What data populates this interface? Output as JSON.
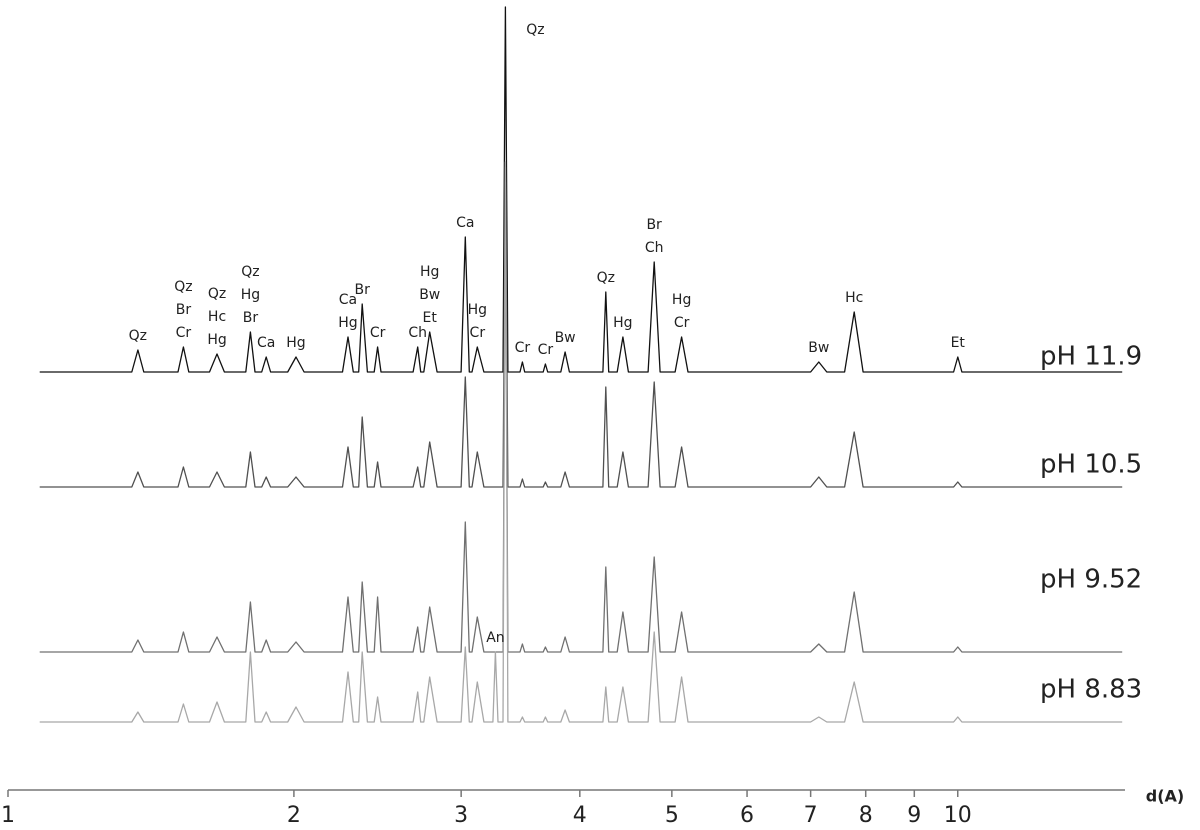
{
  "chart_data": {
    "type": "line",
    "x_label": "d(A)",
    "log_x": true,
    "xlim": [
      1,
      15
    ],
    "xticks": [
      1,
      2,
      3,
      4,
      5,
      6,
      7,
      8,
      9,
      10
    ],
    "x": [
      1.08,
      1.35,
      1.37,
      1.39,
      1.51,
      1.53,
      1.55,
      1.63,
      1.66,
      1.69,
      1.78,
      1.8,
      1.82,
      1.85,
      1.87,
      1.89,
      1.97,
      2.01,
      2.05,
      2.25,
      2.28,
      2.31,
      2.34,
      2.36,
      2.39,
      2.43,
      2.45,
      2.47,
      2.67,
      2.7,
      2.72,
      2.74,
      2.78,
      2.83,
      3.0,
      3.03,
      3.06,
      3.08,
      3.12,
      3.17,
      3.24,
      3.26,
      3.28,
      3.32,
      3.34,
      3.36,
      3.46,
      3.48,
      3.5,
      3.66,
      3.68,
      3.7,
      3.82,
      3.86,
      3.9,
      4.23,
      4.26,
      4.29,
      4.38,
      4.44,
      4.5,
      4.72,
      4.79,
      4.86,
      5.04,
      5.12,
      5.2,
      7.0,
      7.14,
      7.28,
      7.6,
      7.78,
      7.95,
      9.9,
      10.0,
      10.1,
      14.9
    ],
    "series": [
      {
        "name": "pH 11.9",
        "color": "#111111",
        "values": [
          0,
          0,
          22,
          0,
          0,
          25,
          0,
          0,
          18,
          0,
          0,
          40,
          0,
          0,
          15,
          0,
          0,
          15,
          0,
          0,
          35,
          0,
          0,
          68,
          0,
          0,
          25,
          0,
          0,
          25,
          0,
          0,
          40,
          0,
          0,
          135,
          0,
          0,
          25,
          0,
          0,
          0,
          0,
          0,
          365,
          0,
          0,
          10,
          0,
          0,
          8,
          0,
          0,
          20,
          0,
          0,
          80,
          0,
          0,
          35,
          0,
          0,
          110,
          0,
          0,
          35,
          0,
          0,
          10,
          0,
          0,
          60,
          0,
          0,
          15,
          0,
          0
        ]
      },
      {
        "name": "pH 10.5",
        "color": "#505050",
        "values": [
          0,
          0,
          15,
          0,
          0,
          20,
          0,
          0,
          15,
          0,
          0,
          35,
          0,
          0,
          10,
          0,
          0,
          10,
          0,
          0,
          40,
          0,
          0,
          70,
          0,
          0,
          25,
          0,
          0,
          20,
          0,
          0,
          45,
          0,
          0,
          110,
          0,
          0,
          35,
          0,
          0,
          0,
          0,
          0,
          320,
          0,
          0,
          8,
          0,
          0,
          5,
          0,
          0,
          15,
          0,
          0,
          100,
          0,
          0,
          35,
          0,
          0,
          105,
          0,
          0,
          40,
          0,
          0,
          10,
          0,
          0,
          55,
          0,
          0,
          5,
          0,
          0
        ]
      },
      {
        "name": "pH 9.52",
        "color": "#707070",
        "values": [
          0,
          0,
          12,
          0,
          0,
          20,
          0,
          0,
          15,
          0,
          0,
          50,
          0,
          0,
          12,
          0,
          0,
          10,
          0,
          0,
          55,
          0,
          0,
          70,
          0,
          0,
          55,
          0,
          0,
          25,
          0,
          0,
          45,
          0,
          0,
          130,
          0,
          0,
          35,
          0,
          0,
          0,
          0,
          0,
          470,
          0,
          0,
          8,
          0,
          0,
          5,
          0,
          0,
          15,
          0,
          0,
          85,
          0,
          0,
          40,
          0,
          0,
          95,
          0,
          0,
          40,
          0,
          0,
          8,
          0,
          0,
          60,
          0,
          0,
          5,
          0,
          0
        ]
      },
      {
        "name": "pH 8.83",
        "color": "#a8a8a8",
        "values": [
          0,
          0,
          10,
          0,
          0,
          18,
          0,
          0,
          20,
          0,
          0,
          70,
          0,
          0,
          10,
          0,
          0,
          15,
          0,
          0,
          50,
          0,
          0,
          70,
          0,
          0,
          25,
          0,
          0,
          30,
          0,
          0,
          45,
          0,
          0,
          75,
          0,
          0,
          40,
          0,
          0,
          70,
          0,
          0,
          560,
          0,
          0,
          5,
          0,
          0,
          5,
          0,
          0,
          12,
          0,
          0,
          35,
          0,
          0,
          35,
          0,
          0,
          90,
          0,
          0,
          45,
          0,
          0,
          5,
          0,
          0,
          40,
          0,
          0,
          5,
          0,
          0
        ]
      }
    ],
    "annotations": [
      {
        "x": 1.37,
        "series": 0,
        "lines": [
          "Qz"
        ]
      },
      {
        "x": 1.53,
        "series": 0,
        "lines": [
          "Qz",
          "Br",
          "Cr"
        ]
      },
      {
        "x": 1.66,
        "series": 0,
        "lines": [
          "Qz",
          "Hc",
          "Hg"
        ]
      },
      {
        "x": 1.8,
        "series": 0,
        "lines": [
          "Qz",
          "Hg",
          "Br"
        ]
      },
      {
        "x": 1.87,
        "series": 0,
        "lines": [
          "Ca"
        ]
      },
      {
        "x": 2.01,
        "series": 0,
        "lines": [
          "Hg"
        ]
      },
      {
        "x": 2.28,
        "series": 0,
        "lines": [
          "Ca",
          "Hg"
        ]
      },
      {
        "x": 2.36,
        "series": 0,
        "lines": [
          "Br"
        ]
      },
      {
        "x": 2.45,
        "series": 0,
        "lines": [
          "Cr"
        ]
      },
      {
        "x": 2.7,
        "series": 0,
        "lines": [
          "Ch"
        ]
      },
      {
        "x": 2.78,
        "series": 0,
        "lines": [
          "Hg",
          "Bw",
          "Et"
        ]
      },
      {
        "x": 3.03,
        "series": 0,
        "lines": [
          "Ca"
        ]
      },
      {
        "x": 3.12,
        "series": 0,
        "lines": [
          "Hg",
          "Cr"
        ]
      },
      {
        "x": 3.34,
        "series": 0,
        "lines": [
          "Qz"
        ]
      },
      {
        "x": 3.48,
        "series": 0,
        "lines": [
          "Cr"
        ]
      },
      {
        "x": 3.68,
        "series": 0,
        "lines": [
          "Cr"
        ]
      },
      {
        "x": 3.86,
        "series": 0,
        "lines": [
          "Bw"
        ]
      },
      {
        "x": 4.26,
        "series": 0,
        "lines": [
          "Qz"
        ]
      },
      {
        "x": 4.44,
        "series": 0,
        "lines": [
          "Hg"
        ]
      },
      {
        "x": 4.79,
        "series": 0,
        "lines": [
          "Br",
          "Ch"
        ]
      },
      {
        "x": 5.12,
        "series": 0,
        "lines": [
          "Hg",
          "Cr"
        ]
      },
      {
        "x": 7.14,
        "series": 0,
        "lines": [
          "Bw"
        ]
      },
      {
        "x": 7.78,
        "series": 0,
        "lines": [
          "Hc"
        ]
      },
      {
        "x": 10.0,
        "series": 0,
        "lines": [
          "Et"
        ]
      },
      {
        "x": 3.26,
        "series": 3,
        "lines": [
          "An"
        ]
      }
    ]
  }
}
